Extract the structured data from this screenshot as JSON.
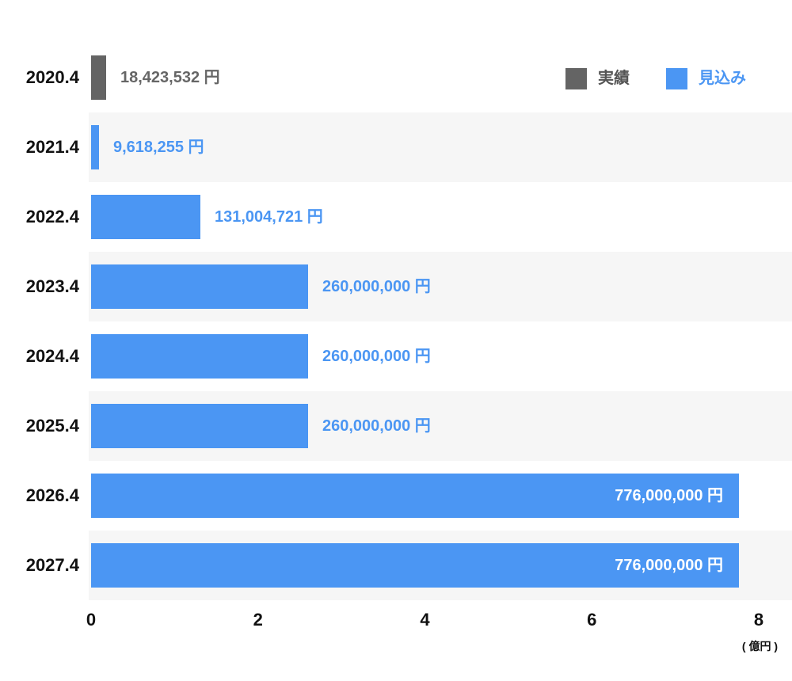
{
  "chart_data": {
    "type": "bar",
    "orientation": "horizontal",
    "categories": [
      "2020.4",
      "2021.4",
      "2022.4",
      "2023.4",
      "2024.4",
      "2025.4",
      "2026.4",
      "2027.4"
    ],
    "values": [
      18423532,
      9618255,
      131004721,
      260000000,
      260000000,
      260000000,
      776000000,
      776000000
    ],
    "value_labels": [
      "18,423,532 円",
      "9,618,255 円",
      "131,004,721 円",
      "260,000,000 円",
      "260,000,000 円",
      "260,000,000 円",
      "776,000,000 円",
      "776,000,000 円"
    ],
    "series": [
      "actual",
      "forecast",
      "forecast",
      "forecast",
      "forecast",
      "forecast",
      "forecast",
      "forecast"
    ],
    "label_position": [
      "outside",
      "outside",
      "outside",
      "outside",
      "outside",
      "outside",
      "inside",
      "inside"
    ],
    "x_ticks": [
      "0",
      "2",
      "4",
      "6",
      "8"
    ],
    "x_tick_values": [
      0,
      2,
      4,
      6,
      8
    ],
    "xlim": [
      0,
      8
    ],
    "x_unit": "億円",
    "xlabel": "( 億円 )",
    "legend_position": "top-right",
    "grid": false
  },
  "legend": {
    "actual_label": "実績",
    "forecast_label": "見込み"
  },
  "axis": {
    "unit_label": "( 億円 )"
  },
  "colors": {
    "actual": "#646464",
    "forecast": "#4b96f3",
    "band": "#f6f6f6",
    "label_actual": "#666666",
    "label_forecast": "#4b96f3",
    "label_inside": "#ffffff",
    "legend_actual_text": "#555555",
    "legend_forecast_text": "#4b96f3"
  }
}
